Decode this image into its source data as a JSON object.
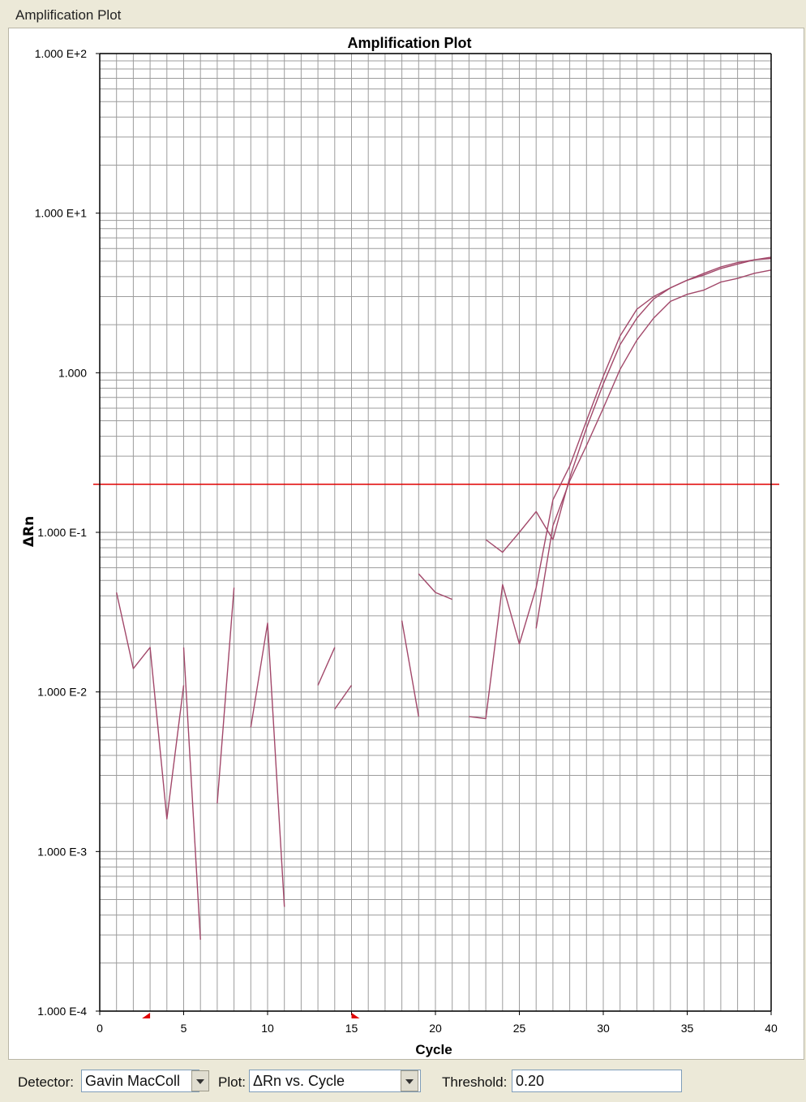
{
  "window": {
    "title": "Amplification Plot"
  },
  "toolbar": {
    "detector_label": "Detector:",
    "detector_value": "Gavin MacColl",
    "plot_label": "Plot:",
    "plot_value": "ΔRn vs. Cycle",
    "threshold_label": "Threshold:",
    "threshold_value": "0.20"
  },
  "colors": {
    "curve": "#a2486a",
    "threshold": "#e00000",
    "grid": "#9c9c9c",
    "baseline_marker": "#e00000"
  },
  "chart_data": {
    "type": "line",
    "title": "Amplification Plot",
    "xlabel": "Cycle",
    "ylabel": "ΔRn",
    "x_range": [
      0,
      40
    ],
    "y_scale": "log",
    "y_range": [
      0.0001,
      100
    ],
    "x_ticks": [
      0,
      5,
      10,
      15,
      20,
      25,
      30,
      35,
      40
    ],
    "y_ticks": [
      {
        "value": 100,
        "label": "1.000 E+2"
      },
      {
        "value": 10,
        "label": "1.000 E+1"
      },
      {
        "value": 1,
        "label": "1.000"
      },
      {
        "value": 0.1,
        "label": "1.000 E-1"
      },
      {
        "value": 0.01,
        "label": "1.000 E-2"
      },
      {
        "value": 0.001,
        "label": "1.000 E-3"
      },
      {
        "value": 0.0001,
        "label": "1.000 E-4"
      }
    ],
    "grid": "on",
    "threshold": 0.2,
    "baseline_markers": [
      3,
      15
    ],
    "series": [
      {
        "segments": [
          [
            [
              1,
              0.042
            ],
            [
              2,
              0.014
            ],
            [
              3,
              0.019
            ],
            [
              4,
              0.0016
            ],
            [
              5,
              0.011
            ]
          ],
          [
            [
              5,
              0.019
            ],
            [
              6,
              0.00028
            ]
          ],
          [
            [
              7,
              0.002
            ],
            [
              8,
              0.045
            ]
          ],
          [
            [
              9,
              0.006
            ],
            [
              10,
              0.027
            ],
            [
              11,
              0.00045
            ]
          ],
          [
            [
              13,
              0.011
            ],
            [
              14,
              0.019
            ]
          ],
          [
            [
              14,
              0.0078
            ],
            [
              15,
              0.011
            ]
          ],
          [
            [
              18,
              0.028
            ],
            [
              19,
              0.007
            ]
          ],
          [
            [
              19,
              0.055
            ],
            [
              20,
              0.042
            ],
            [
              21,
              0.038
            ]
          ],
          [
            [
              22,
              0.007
            ],
            [
              23,
              0.0068
            ],
            [
              24,
              0.047
            ],
            [
              25,
              0.02
            ],
            [
              26,
              0.045
            ],
            [
              27,
              0.16
            ],
            [
              28,
              0.26
            ],
            [
              29,
              0.5
            ],
            [
              30,
              0.95
            ],
            [
              31,
              1.7
            ],
            [
              32,
              2.5
            ],
            [
              33,
              3.0
            ],
            [
              34,
              3.4
            ],
            [
              35,
              3.8
            ],
            [
              36,
              4.1
            ],
            [
              37,
              4.5
            ],
            [
              38,
              4.8
            ],
            [
              39,
              5.1
            ],
            [
              40,
              5.3
            ]
          ]
        ]
      },
      {
        "segments": [
          [
            [
              23,
              0.09
            ],
            [
              24,
              0.075
            ],
            [
              25,
              0.1
            ],
            [
              26,
              0.135
            ],
            [
              27,
              0.09
            ],
            [
              28,
              0.22
            ],
            [
              29,
              0.45
            ],
            [
              30,
              0.85
            ],
            [
              31,
              1.5
            ],
            [
              32,
              2.2
            ],
            [
              33,
              2.9
            ],
            [
              34,
              3.4
            ],
            [
              35,
              3.8
            ],
            [
              36,
              4.2
            ],
            [
              37,
              4.6
            ],
            [
              38,
              4.9
            ],
            [
              39,
              5.1
            ],
            [
              40,
              5.2
            ]
          ]
        ]
      },
      {
        "segments": [
          [
            [
              26,
              0.025
            ],
            [
              27,
              0.11
            ],
            [
              28,
              0.21
            ],
            [
              29,
              0.35
            ],
            [
              30,
              0.6
            ],
            [
              31,
              1.05
            ],
            [
              32,
              1.6
            ],
            [
              33,
              2.2
            ],
            [
              34,
              2.8
            ],
            [
              35,
              3.1
            ],
            [
              36,
              3.3
            ],
            [
              37,
              3.7
            ],
            [
              38,
              3.9
            ],
            [
              39,
              4.2
            ],
            [
              40,
              4.4
            ]
          ]
        ]
      }
    ]
  }
}
